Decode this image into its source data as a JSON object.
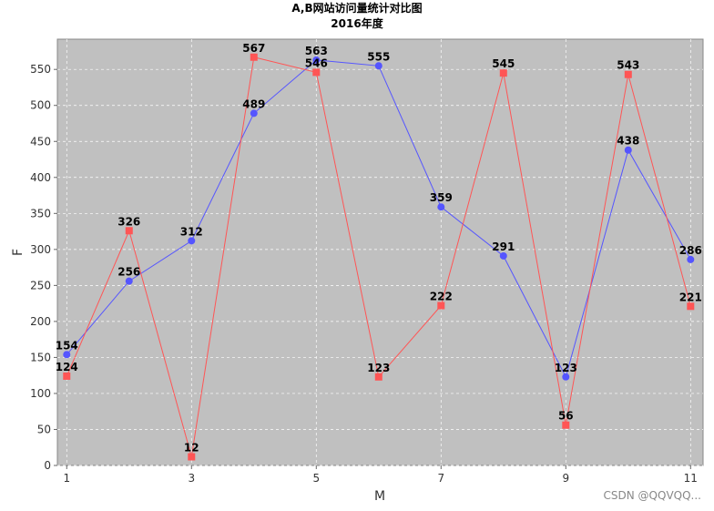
{
  "chart_data": {
    "type": "line",
    "title": "A,B网站访问量统计对比图",
    "subtitle": "2016年度",
    "xlabel": "M",
    "ylabel": "F",
    "x": [
      1,
      2,
      3,
      4,
      5,
      6,
      7,
      8,
      9,
      10,
      11
    ],
    "xticks": [
      1,
      3,
      5,
      7,
      9,
      11
    ],
    "xlim": [
      0.85,
      11.2
    ],
    "ylim": [
      0,
      592
    ],
    "yticks": [
      0,
      50,
      100,
      150,
      200,
      250,
      300,
      350,
      400,
      450,
      500,
      550
    ],
    "grid": true,
    "legend": "none",
    "series": [
      {
        "color": "#5555ff",
        "marker": "circle",
        "values": [
          154,
          256,
          312,
          489,
          563,
          555,
          359,
          291,
          123,
          438,
          286
        ]
      },
      {
        "color": "#ff5555",
        "marker": "square",
        "values": [
          124,
          326,
          12,
          567,
          546,
          123,
          222,
          545,
          56,
          543,
          221
        ]
      }
    ],
    "colors": {
      "plot_background": "#c0c0c0",
      "grid": "#ffffff"
    }
  },
  "watermark": "CSDN @QQVQQ..."
}
